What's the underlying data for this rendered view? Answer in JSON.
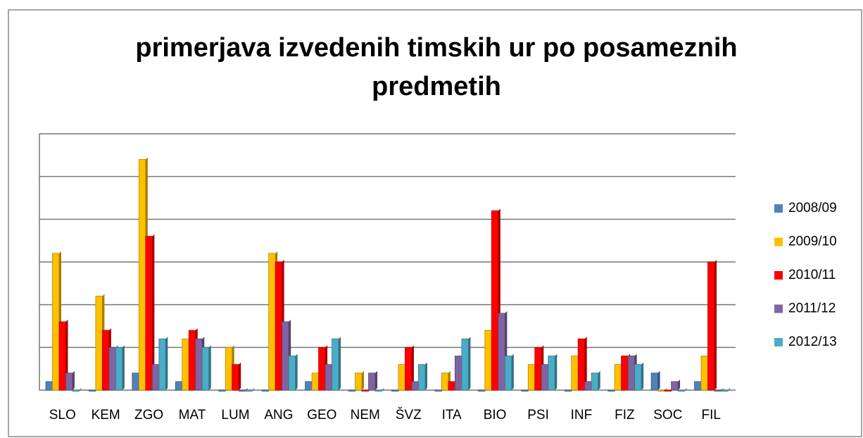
{
  "chart_data": {
    "type": "bar",
    "title": "primerjava izvedenih timskih ur po posameznih predmetih",
    "categories": [
      "SLO",
      "KEM",
      "ZGO",
      "MAT",
      "LUM",
      "ANG",
      "GEO",
      "NEM",
      "ŠVZ",
      "ITA",
      "BIO",
      "PSI",
      "INF",
      "FIZ",
      "SOC",
      "FIL"
    ],
    "series": [
      {
        "name": "2008/09",
        "color": "#4f81bd",
        "values": [
          2,
          0,
          4,
          2,
          0,
          0,
          2,
          0,
          0,
          0,
          0,
          0,
          0,
          0,
          4,
          2
        ]
      },
      {
        "name": "2009/10",
        "color": "#ffc000",
        "values": [
          32,
          22,
          54,
          12,
          10,
          32,
          4,
          4,
          6,
          4,
          14,
          6,
          8,
          6,
          0,
          8
        ]
      },
      {
        "name": "2010/11",
        "color": "#ff0000",
        "values": [
          16,
          14,
          36,
          14,
          6,
          30,
          10,
          0,
          10,
          2,
          42,
          10,
          12,
          8,
          0,
          30
        ]
      },
      {
        "name": "2011/12",
        "color": "#8064a2",
        "values": [
          4,
          10,
          6,
          12,
          0,
          16,
          6,
          4,
          2,
          8,
          18,
          6,
          2,
          8,
          2,
          0
        ]
      },
      {
        "name": "2012/13",
        "color": "#4bacc6",
        "values": [
          0,
          10,
          12,
          10,
          0,
          8,
          12,
          0,
          6,
          12,
          8,
          8,
          4,
          6,
          0,
          0
        ]
      }
    ],
    "ylim": [
      0,
      60
    ],
    "yticks": [
      0,
      10,
      20,
      30,
      40,
      50,
      60
    ],
    "grid": true,
    "legend": "right"
  }
}
